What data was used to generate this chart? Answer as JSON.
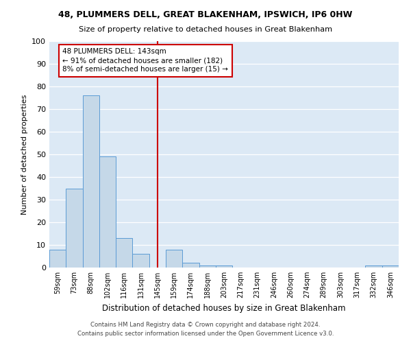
{
  "title": "48, PLUMMERS DELL, GREAT BLAKENHAM, IPSWICH, IP6 0HW",
  "subtitle": "Size of property relative to detached houses in Great Blakenham",
  "xlabel": "Distribution of detached houses by size in Great Blakenham",
  "ylabel": "Number of detached properties",
  "bin_labels": [
    "59sqm",
    "73sqm",
    "88sqm",
    "102sqm",
    "116sqm",
    "131sqm",
    "145sqm",
    "159sqm",
    "174sqm",
    "188sqm",
    "203sqm",
    "217sqm",
    "231sqm",
    "246sqm",
    "260sqm",
    "274sqm",
    "289sqm",
    "303sqm",
    "317sqm",
    "332sqm",
    "346sqm"
  ],
  "bar_values": [
    8,
    35,
    76,
    49,
    13,
    6,
    0,
    8,
    2,
    1,
    1,
    0,
    0,
    0,
    0,
    0,
    0,
    0,
    0,
    1,
    1
  ],
  "bar_color": "#c5d8e8",
  "bar_edge_color": "#5b9bd5",
  "highlight_line_color": "#cc0000",
  "annotation_text": "48 PLUMMERS DELL: 143sqm\n← 91% of detached houses are smaller (182)\n8% of semi-detached houses are larger (15) →",
  "annotation_box_color": "#cc0000",
  "ylim": [
    0,
    100
  ],
  "yticks": [
    0,
    10,
    20,
    30,
    40,
    50,
    60,
    70,
    80,
    90,
    100
  ],
  "footer1": "Contains HM Land Registry data © Crown copyright and database right 2024.",
  "footer2": "Contains public sector information licensed under the Open Government Licence v3.0.",
  "fig_bg_color": "#ffffff",
  "plot_bg_color": "#dce9f5"
}
